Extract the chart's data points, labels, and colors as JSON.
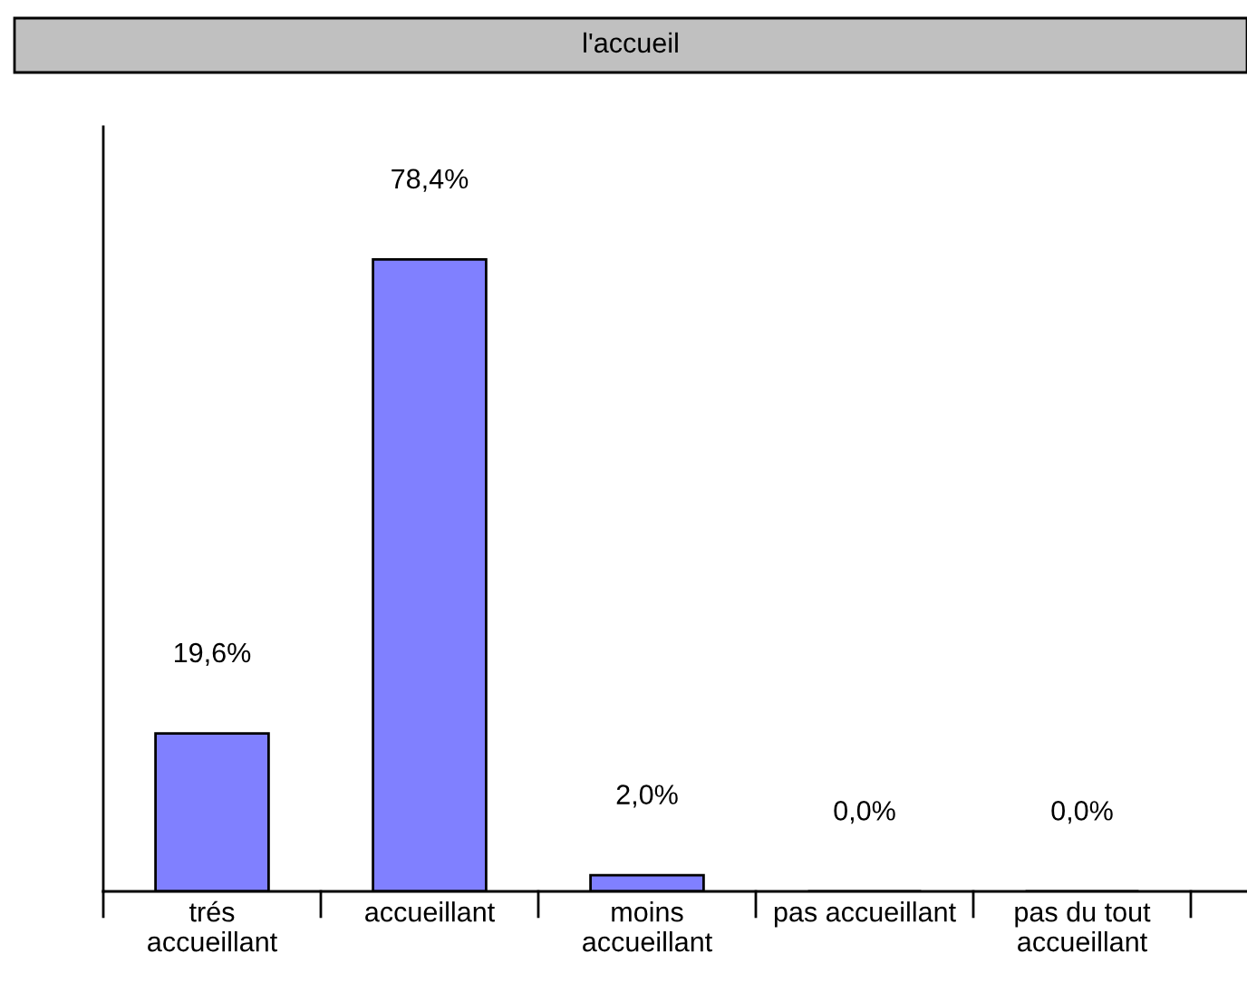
{
  "chart_data": {
    "type": "bar",
    "title": "l'accueil",
    "categories": [
      "trés\naccueillant",
      "accueillant",
      "moins\naccueillant",
      "pas accueillant",
      "pas du tout\naccueillant"
    ],
    "values": [
      19.6,
      78.4,
      2.0,
      0.0,
      0.0
    ],
    "value_labels": [
      "19,6%",
      "78,4%",
      "2,0%",
      "0,0%",
      "0,0%"
    ],
    "color": "#8080ff",
    "grid": false,
    "legend": false,
    "tick_labels": "x"
  }
}
